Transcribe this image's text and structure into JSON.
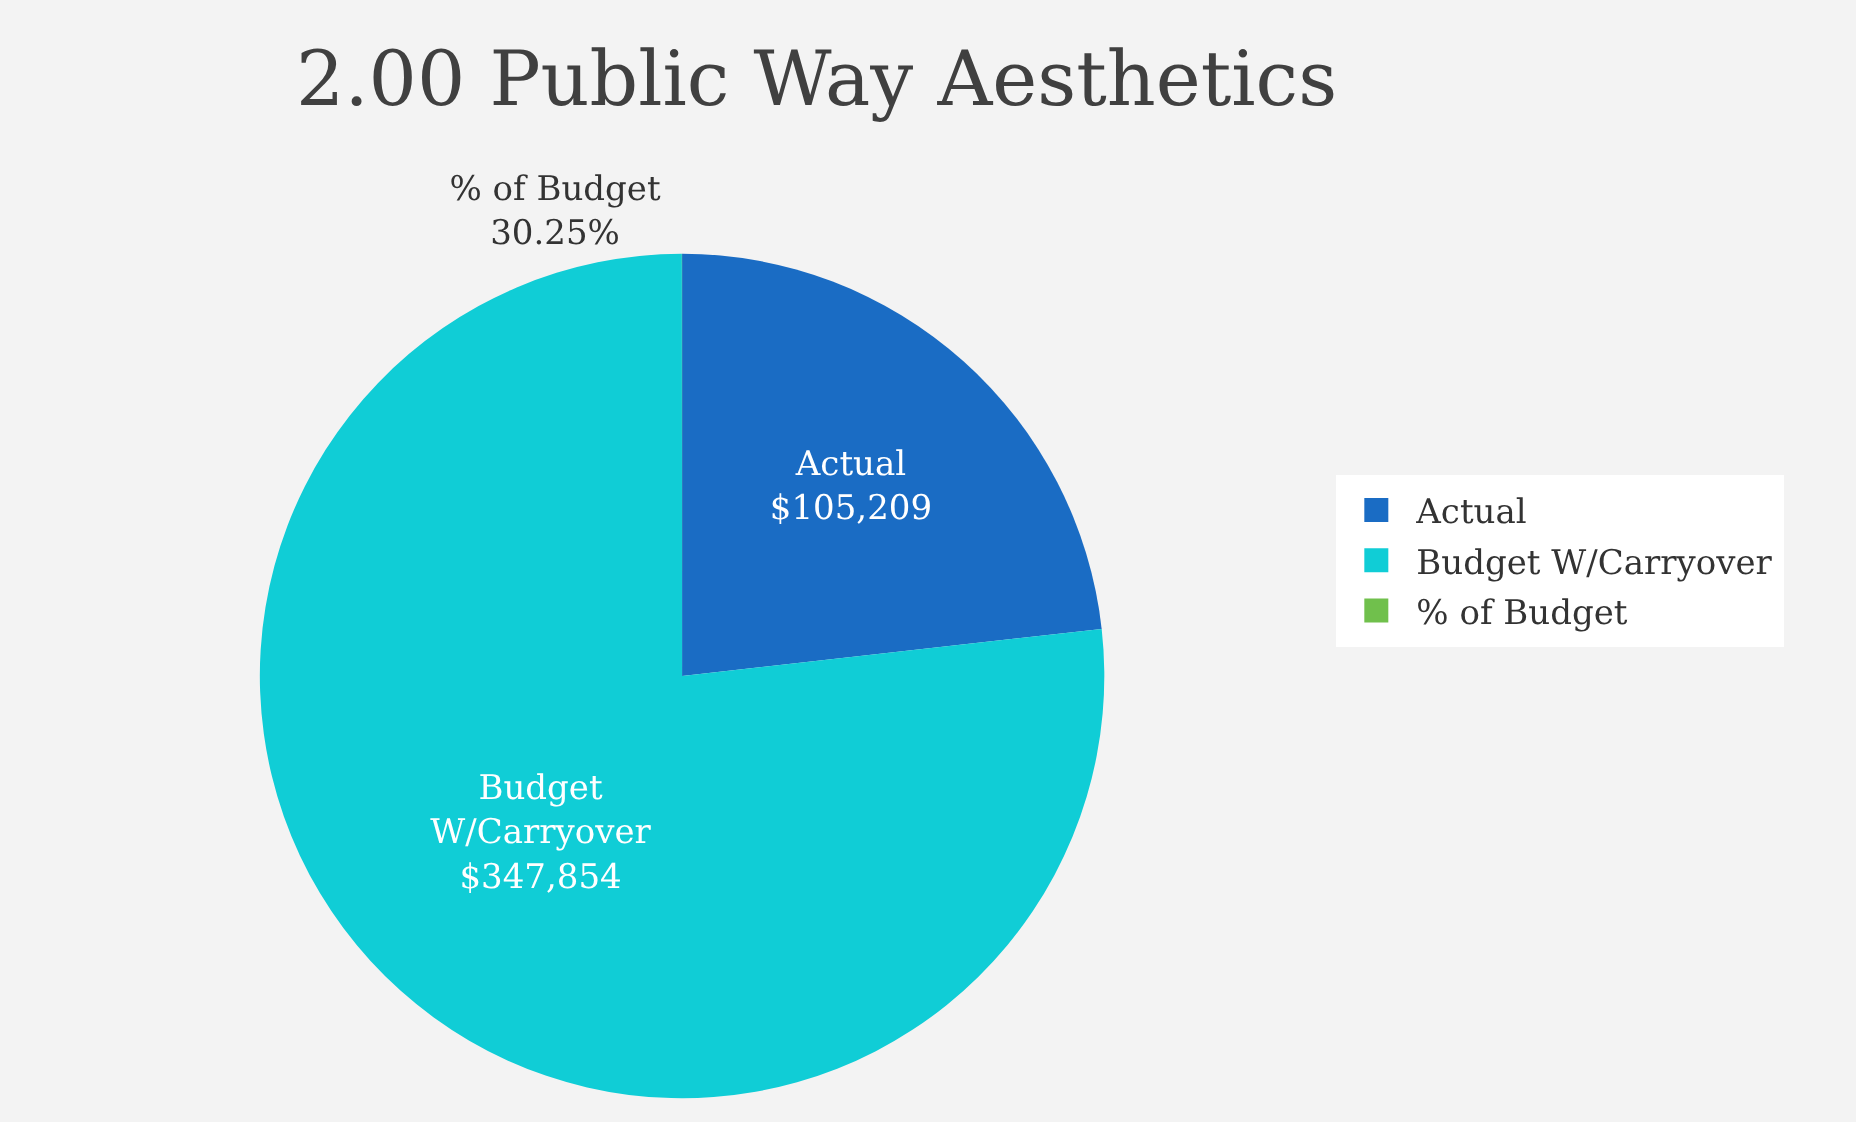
{
  "chart_data": {
    "type": "pie",
    "title": "2.00 Public Way Aesthetics",
    "categories": [
      "Actual",
      "Budget W/Carryover",
      "% of Budget"
    ],
    "values": [
      105209,
      347854,
      30.25
    ],
    "colors": [
      "#1a6cc4",
      "#10cdd6",
      "#70c04c"
    ],
    "value_labels": [
      "Actual\n$105,209",
      "Budget\nW/Carryover\n$347,854",
      "% of Budget\n30.25%"
    ],
    "legend": "right"
  }
}
